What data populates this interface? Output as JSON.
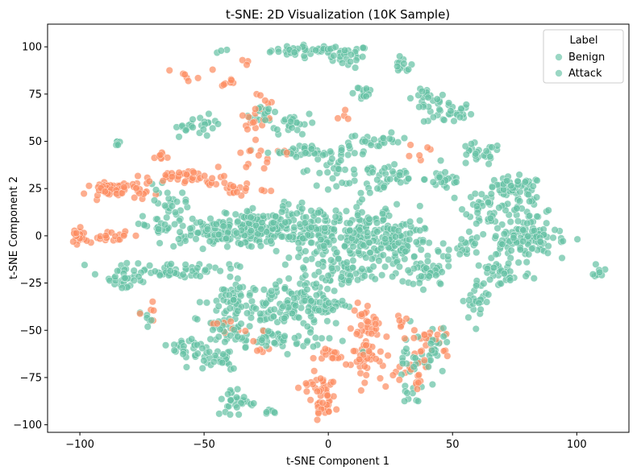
{
  "chart_data": {
    "type": "scatter",
    "title": "t-SNE: 2D Visualization (10K Sample)",
    "xlabel": "t-SNE Component 1",
    "ylabel": "t-SNE Component 2",
    "xlim": [
      -113,
      121
    ],
    "ylim": [
      -104,
      112
    ],
    "xticks": [
      -100,
      -50,
      0,
      50,
      100
    ],
    "yticks": [
      -100,
      -75,
      -50,
      -25,
      0,
      25,
      50,
      75,
      100
    ],
    "grid": false,
    "legend": {
      "title": "Label",
      "placement": "top-right",
      "entries": [
        "Benign",
        "Attack"
      ]
    },
    "series": [
      {
        "name": "Benign",
        "color": "#66c2a5",
        "clusters": [
          {
            "x": -7,
            "y": 98,
            "sx": 8,
            "sy": 1.5,
            "n": 40
          },
          {
            "x": 8,
            "y": 95,
            "sx": 4,
            "sy": 3,
            "n": 25
          },
          {
            "x": 30,
            "y": 90,
            "sx": 2,
            "sy": 2,
            "n": 12
          },
          {
            "x": 40,
            "y": 72,
            "sx": 4,
            "sy": 3,
            "n": 20
          },
          {
            "x": 48,
            "y": 65,
            "sx": 5,
            "sy": 3,
            "n": 30
          },
          {
            "x": 13,
            "y": 76,
            "sx": 3,
            "sy": 2,
            "n": 15
          },
          {
            "x": -43,
            "y": 98,
            "sx": 2,
            "sy": 1,
            "n": 3
          },
          {
            "x": -25,
            "y": 65,
            "sx": 3,
            "sy": 3,
            "n": 15
          },
          {
            "x": -15,
            "y": 60,
            "sx": 5,
            "sy": 3,
            "n": 25
          },
          {
            "x": -57,
            "y": 57,
            "sx": 3,
            "sy": 2,
            "n": 15
          },
          {
            "x": -48,
            "y": 60,
            "sx": 2,
            "sy": 2,
            "n": 10
          },
          {
            "x": -85,
            "y": 49,
            "sx": 1,
            "sy": 1,
            "n": 6
          },
          {
            "x": -8,
            "y": 45,
            "sx": 8,
            "sy": 1.5,
            "n": 40
          },
          {
            "x": 20,
            "y": 50,
            "sx": 6,
            "sy": 2,
            "n": 25
          },
          {
            "x": 3,
            "y": 35,
            "sx": 8,
            "sy": 4,
            "n": 35
          },
          {
            "x": 25,
            "y": 30,
            "sx": 6,
            "sy": 4,
            "n": 35
          },
          {
            "x": 47,
            "y": 30,
            "sx": 4,
            "sy": 3,
            "n": 25
          },
          {
            "x": 60,
            "y": 43,
            "sx": 5,
            "sy": 3,
            "n": 25
          },
          {
            "x": 75,
            "y": 25,
            "sx": 6,
            "sy": 3,
            "n": 50
          },
          {
            "x": 65,
            "y": 15,
            "sx": 5,
            "sy": 5,
            "n": 40
          },
          {
            "x": 80,
            "y": 10,
            "sx": 6,
            "sy": 6,
            "n": 40
          },
          {
            "x": 75,
            "y": -5,
            "sx": 8,
            "sy": 4,
            "n": 60
          },
          {
            "x": 85,
            "y": 0,
            "sx": 5,
            "sy": 3,
            "n": 25
          },
          {
            "x": 70,
            "y": -20,
            "sx": 6,
            "sy": 4,
            "n": 40
          },
          {
            "x": 60,
            "y": -35,
            "sx": 3,
            "sy": 5,
            "n": 25
          },
          {
            "x": 55,
            "y": -5,
            "sx": 3,
            "sy": 4,
            "n": 20
          },
          {
            "x": 109,
            "y": -18,
            "sx": 1,
            "sy": 2,
            "n": 8
          },
          {
            "x": -45,
            "y": 2,
            "sx": 12,
            "sy": 4,
            "n": 130
          },
          {
            "x": -25,
            "y": 5,
            "sx": 8,
            "sy": 5,
            "n": 90
          },
          {
            "x": -5,
            "y": 0,
            "sx": 8,
            "sy": 8,
            "n": 140
          },
          {
            "x": 15,
            "y": 0,
            "sx": 6,
            "sy": 8,
            "n": 120
          },
          {
            "x": 30,
            "y": -5,
            "sx": 6,
            "sy": 8,
            "n": 90
          },
          {
            "x": 40,
            "y": -20,
            "sx": 5,
            "sy": 4,
            "n": 40
          },
          {
            "x": 8,
            "y": -20,
            "sx": 6,
            "sy": 4,
            "n": 40
          },
          {
            "x": -65,
            "y": 15,
            "sx": 4,
            "sy": 5,
            "n": 30
          },
          {
            "x": -62,
            "y": -18,
            "sx": 12,
            "sy": 2,
            "n": 60
          },
          {
            "x": -82,
            "y": -23,
            "sx": 5,
            "sy": 3,
            "n": 25
          },
          {
            "x": -40,
            "y": -35,
            "sx": 5,
            "sy": 6,
            "n": 50
          },
          {
            "x": -22,
            "y": -38,
            "sx": 8,
            "sy": 6,
            "n": 80
          },
          {
            "x": -5,
            "y": -35,
            "sx": 6,
            "sy": 6,
            "n": 70
          },
          {
            "x": -55,
            "y": -60,
            "sx": 4,
            "sy": 4,
            "n": 30
          },
          {
            "x": -45,
            "y": -65,
            "sx": 5,
            "sy": 3,
            "n": 25
          },
          {
            "x": -20,
            "y": -55,
            "sx": 12,
            "sy": 3,
            "n": 60
          },
          {
            "x": -40,
            "y": -50,
            "sx": 4,
            "sy": 3,
            "n": 20
          },
          {
            "x": -37,
            "y": -88,
            "sx": 4,
            "sy": 4,
            "n": 30
          },
          {
            "x": -23,
            "y": -93,
            "sx": 2,
            "sy": 1,
            "n": 6
          },
          {
            "x": 35,
            "y": -65,
            "sx": 4,
            "sy": 8,
            "n": 30
          },
          {
            "x": 43,
            "y": -55,
            "sx": 3,
            "sy": 4,
            "n": 20
          },
          {
            "x": 33,
            "y": -85,
            "sx": 2,
            "sy": 3,
            "n": 8
          },
          {
            "x": -73,
            "y": -45,
            "sx": 2,
            "sy": 2,
            "n": 6
          },
          {
            "x": -70,
            "y": 5,
            "sx": 3,
            "sy": 2,
            "n": 8
          }
        ]
      },
      {
        "name": "Attack",
        "color": "#fc8d62",
        "clusters": [
          {
            "x": -101,
            "y": 0,
            "sx": 2,
            "sy": 3,
            "n": 20
          },
          {
            "x": -88,
            "y": 0,
            "sx": 5,
            "sy": 1.5,
            "n": 20
          },
          {
            "x": -90,
            "y": 25,
            "sx": 3,
            "sy": 2,
            "n": 25
          },
          {
            "x": -80,
            "y": 24,
            "sx": 5,
            "sy": 2,
            "n": 30
          },
          {
            "x": -57,
            "y": 31,
            "sx": 8,
            "sy": 2,
            "n": 40
          },
          {
            "x": -68,
            "y": 42,
            "sx": 2,
            "sy": 1,
            "n": 8
          },
          {
            "x": -38,
            "y": 25,
            "sx": 6,
            "sy": 2,
            "n": 20
          },
          {
            "x": -30,
            "y": 40,
            "sx": 3,
            "sy": 3,
            "n": 10
          },
          {
            "x": -30,
            "y": 62,
            "sx": 3,
            "sy": 5,
            "n": 15
          },
          {
            "x": -27,
            "y": 72,
            "sx": 2,
            "sy": 2,
            "n": 5
          },
          {
            "x": -58,
            "y": 84,
            "sx": 3,
            "sy": 1,
            "n": 6
          },
          {
            "x": -42,
            "y": 82,
            "sx": 3,
            "sy": 3,
            "n": 8
          },
          {
            "x": -33,
            "y": 93,
            "sx": 1,
            "sy": 1,
            "n": 3
          },
          {
            "x": 8,
            "y": 62,
            "sx": 2,
            "sy": 2,
            "n": 4
          },
          {
            "x": 38,
            "y": 45,
            "sx": 3,
            "sy": 3,
            "n": 6
          },
          {
            "x": 15,
            "y": -50,
            "sx": 3,
            "sy": 8,
            "n": 40
          },
          {
            "x": 14,
            "y": -67,
            "sx": 4,
            "sy": 5,
            "n": 30
          },
          {
            "x": 0,
            "y": -63,
            "sx": 3,
            "sy": 2,
            "n": 15
          },
          {
            "x": -3,
            "y": -80,
            "sx": 4,
            "sy": 4,
            "n": 30
          },
          {
            "x": -2,
            "y": -91,
            "sx": 3,
            "sy": 3,
            "n": 20
          },
          {
            "x": 33,
            "y": -72,
            "sx": 4,
            "sy": 5,
            "n": 20
          },
          {
            "x": 40,
            "y": -57,
            "sx": 5,
            "sy": 4,
            "n": 20
          },
          {
            "x": 29,
            "y": -46,
            "sx": 2,
            "sy": 2,
            "n": 6
          },
          {
            "x": -38,
            "y": -47,
            "sx": 5,
            "sy": 4,
            "n": 10
          },
          {
            "x": -72,
            "y": -42,
            "sx": 2,
            "sy": 3,
            "n": 5
          },
          {
            "x": -26,
            "y": -60,
            "sx": 2,
            "sy": 2,
            "n": 5
          },
          {
            "x": -17,
            "y": 45,
            "sx": 2,
            "sy": 2,
            "n": 5
          }
        ]
      }
    ]
  }
}
